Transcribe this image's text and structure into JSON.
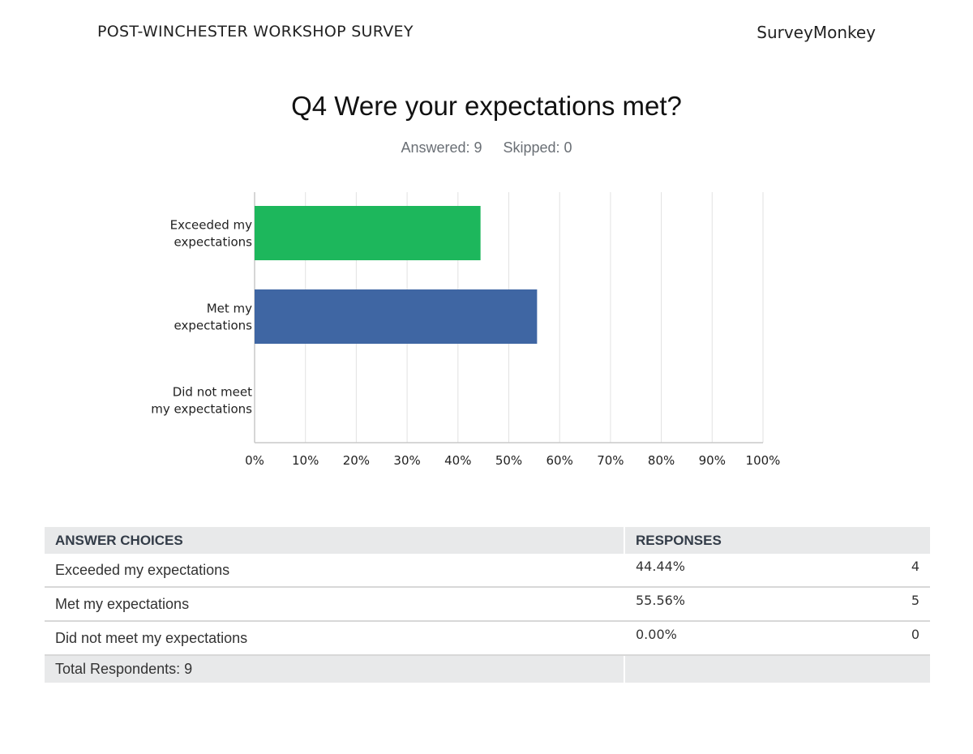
{
  "header": {
    "survey_title": "POST-WINCHESTER WORKSHOP SURVEY",
    "brand": "SurveyMonkey"
  },
  "question": {
    "title": "Q4 Were your expectations met?",
    "answered_label": "Answered: 9",
    "skipped_label": "Skipped: 0"
  },
  "chart_data": {
    "type": "bar",
    "orientation": "horizontal",
    "categories": [
      [
        "Exceeded my",
        "expectations"
      ],
      [
        "Met my",
        "expectations"
      ],
      [
        "Did not meet",
        "my expectations"
      ]
    ],
    "values": [
      44.44,
      55.56,
      0
    ],
    "colors": [
      "#1db75c",
      "#3f66a3",
      "#7a9cc6"
    ],
    "xlim": [
      0,
      100
    ],
    "xticks": [
      "0%",
      "10%",
      "20%",
      "30%",
      "40%",
      "50%",
      "60%",
      "70%",
      "80%",
      "90%",
      "100%"
    ],
    "grid": true
  },
  "table": {
    "headers": [
      "ANSWER CHOICES",
      "RESPONSES"
    ],
    "rows": [
      {
        "choice": "Exceeded my expectations",
        "percent": "44.44%",
        "count": "4"
      },
      {
        "choice": "Met my expectations",
        "percent": "55.56%",
        "count": "5"
      },
      {
        "choice": "Did not meet my expectations",
        "percent": "0.00%",
        "count": "0"
      }
    ],
    "total_label": "Total Respondents: 9"
  }
}
